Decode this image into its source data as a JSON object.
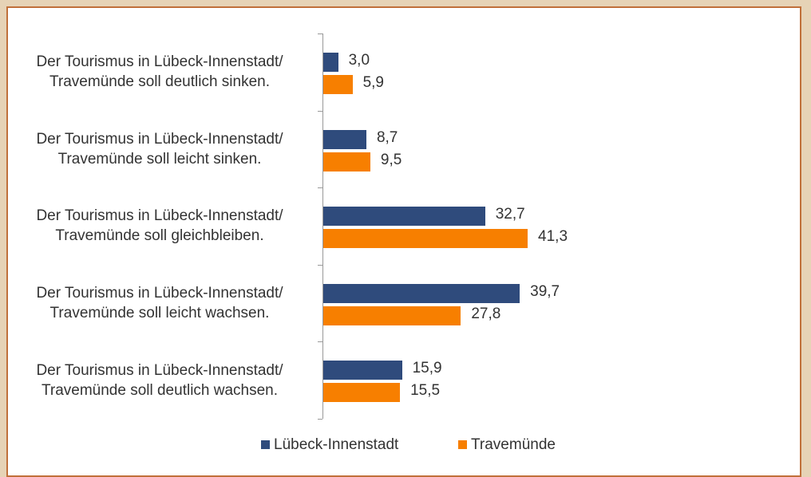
{
  "chart_data": {
    "type": "hbar",
    "categories": [
      "Der Tourismus in Lübeck-Innenstadt/ Travemünde soll deutlich sinken.",
      "Der Tourismus in Lübeck-Innenstadt/ Travemünde soll leicht sinken.",
      "Der Tourismus in Lübeck-Innenstadt/ Travemünde soll gleichbleiben.",
      "Der Tourismus in Lübeck-Innenstadt/ Travemünde soll leicht wachsen.",
      "Der Tourismus in Lübeck-Innenstadt/ Travemünde soll deutlich wachsen."
    ],
    "series": [
      {
        "name": "Lübeck-Innenstadt",
        "color": "#2f4b7c",
        "values": [
          3.0,
          8.7,
          32.7,
          39.7,
          15.9
        ],
        "value_labels": [
          "3,0",
          "8,7",
          "32,7",
          "39,7",
          "15,9"
        ]
      },
      {
        "name": "Travemünde",
        "color": "#f77f00",
        "values": [
          5.9,
          9.5,
          41.3,
          27.8,
          15.5
        ],
        "value_labels": [
          "5,9",
          "9,5",
          "41,3",
          "27,8",
          "15,5"
        ]
      }
    ],
    "legend": "bottom"
  }
}
